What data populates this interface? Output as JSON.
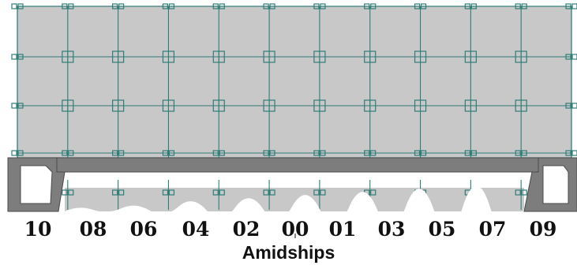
{
  "diagram": {
    "caption": "Amidships",
    "frames": [
      "10",
      "08",
      "06",
      "04",
      "02",
      "00",
      "01",
      "03",
      "05",
      "07",
      "09"
    ],
    "panel_rows_upper": 3,
    "colors": {
      "panel_fill": "#c8c8c8",
      "grid_line": "#2e7d78",
      "beam_fill": "#7d7d7d",
      "beam_stroke": "#4a4a4a",
      "text": "#111111"
    }
  }
}
